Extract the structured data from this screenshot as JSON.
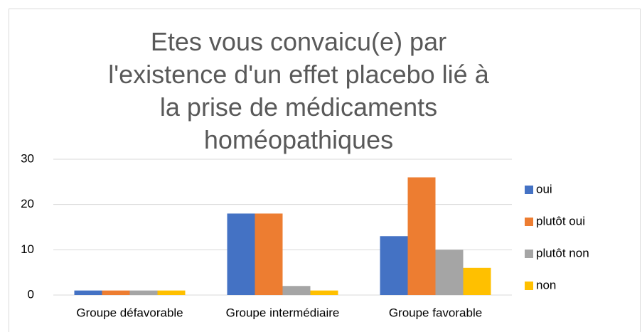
{
  "chart_data": {
    "type": "bar",
    "title": "Etes vous convaicu(e) par l'existence d'un effet placebo lié à la prise de médicaments homéopathiques",
    "categories": [
      "Groupe défavorable",
      "Groupe intermédiaire",
      "Groupe favorable"
    ],
    "series": [
      {
        "name": "oui",
        "color": "#4472c4",
        "values": [
          1,
          18,
          13
        ]
      },
      {
        "name": "plutôt oui",
        "color": "#ed7d31",
        "values": [
          1,
          18,
          26
        ]
      },
      {
        "name": "plutôt non",
        "color": "#a5a5a5",
        "values": [
          1,
          2,
          10
        ]
      },
      {
        "name": "non",
        "color": "#ffc000",
        "values": [
          1,
          1,
          6
        ]
      }
    ],
    "ylim": [
      0,
      30
    ],
    "yticks": [
      0,
      10,
      20,
      30
    ],
    "grid": true,
    "legend": "right"
  }
}
